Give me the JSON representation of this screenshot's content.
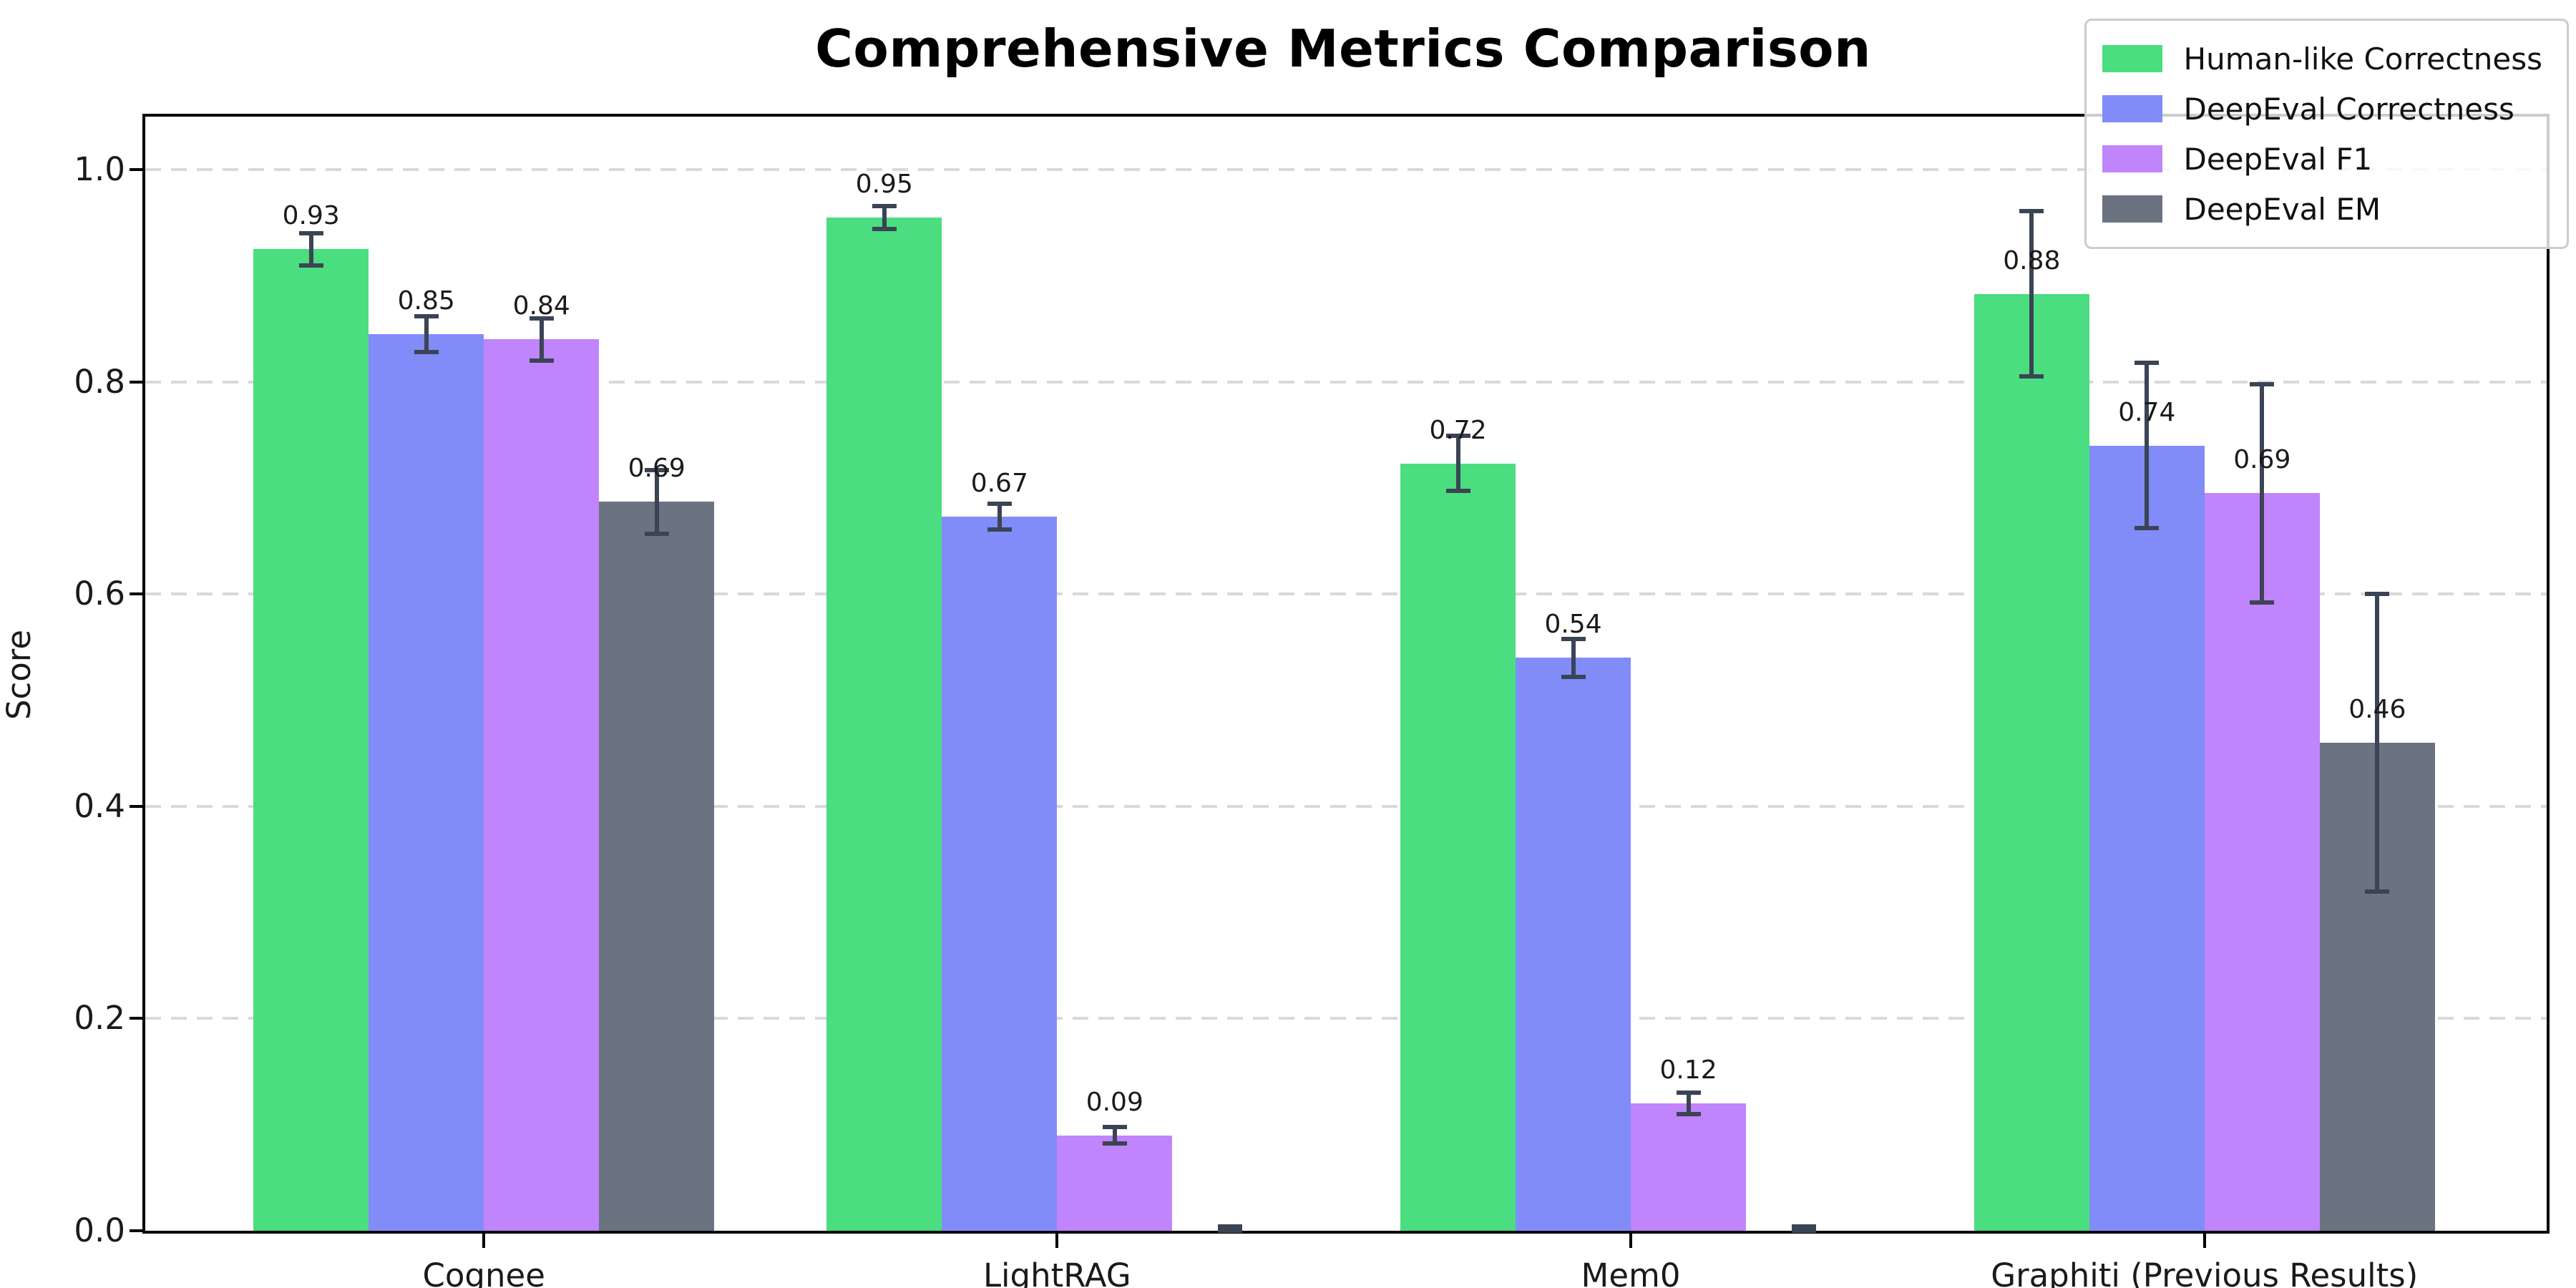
{
  "title": "Comprehensive Metrics Comparison",
  "y_axis_label": "Score",
  "chart_data": {
    "type": "bar",
    "title": "Comprehensive Metrics Comparison",
    "xlabel": "",
    "ylabel": "Score",
    "ylim": [
      0,
      1.05
    ],
    "grid": "horizontal-dashed",
    "legend_position": "upper right",
    "categories": [
      "Cognee",
      "LightRAG",
      "Mem0",
      "Graphiti (Previous Results)"
    ],
    "ytick_labels": [
      "0.0",
      "0.2",
      "0.4",
      "0.6",
      "0.8",
      "1.0"
    ],
    "series": [
      {
        "name": "Human-like Correctness",
        "color": "#4ade80",
        "values": [
          0.925,
          0.955,
          0.723,
          0.883
        ],
        "errors": [
          0.015,
          0.011,
          0.026,
          0.078
        ],
        "labels": [
          "0.93",
          "0.95",
          "0.72",
          "0.88"
        ]
      },
      {
        "name": "DeepEval Correctness",
        "color": "#818cf8",
        "values": [
          0.845,
          0.673,
          0.54,
          0.74
        ],
        "errors": [
          0.017,
          0.012,
          0.018,
          0.078
        ],
        "labels": [
          "0.85",
          "0.67",
          "0.54",
          "0.74"
        ]
      },
      {
        "name": "DeepEval F1",
        "color": "#c084fc",
        "values": [
          0.84,
          0.09,
          0.12,
          0.695
        ],
        "errors": [
          0.02,
          0.008,
          0.01,
          0.103
        ],
        "labels": [
          "0.84",
          "0.09",
          "0.12",
          "0.69"
        ]
      },
      {
        "name": "DeepEval EM",
        "color": "#6b7280",
        "values": [
          0.687,
          0.0,
          0.0,
          0.46
        ],
        "errors": [
          0.03,
          0.004,
          0.004,
          0.14
        ],
        "labels": [
          "0.69",
          null,
          null,
          "0.46"
        ]
      }
    ],
    "error_bar_color": "#3b4454",
    "grid_color": "#d9d9d9",
    "text_color": "#1a1a1a"
  }
}
